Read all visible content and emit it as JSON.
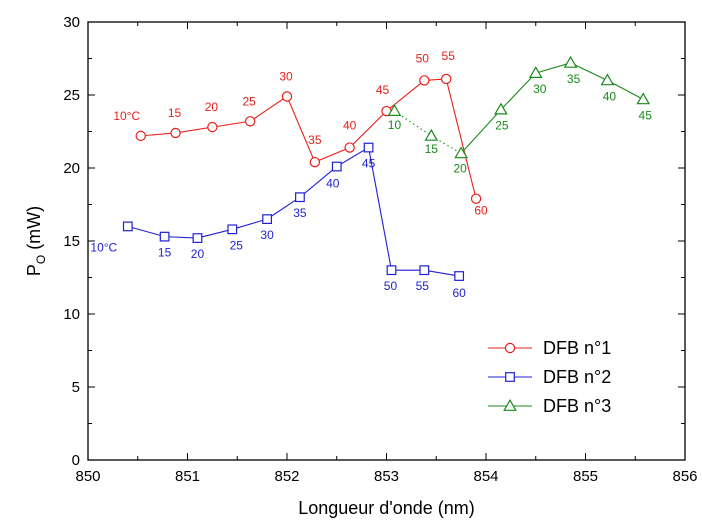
{
  "chart_data": {
    "type": "line",
    "title": "",
    "xlabel": "Longueur d'onde (nm)",
    "ylabel_main": "P",
    "ylabel_sub": "O",
    "ylabel_unit": " (mW)",
    "xlim": [
      850,
      856
    ],
    "ylim": [
      0,
      30
    ],
    "xticks": [
      "850",
      "851",
      "852",
      "853",
      "854",
      "855",
      "856"
    ],
    "yticks": [
      "0",
      "5",
      "10",
      "15",
      "20",
      "25",
      "30"
    ],
    "grid": false,
    "legend_position": "bottom-right",
    "series": [
      {
        "name": "DFB n°1",
        "color": "#e8201c",
        "marker": "circle",
        "line_style": "solid",
        "points": [
          {
            "x": 850.53,
            "y": 22.2,
            "label": "10°C"
          },
          {
            "x": 850.88,
            "y": 22.4,
            "label": "15"
          },
          {
            "x": 851.25,
            "y": 22.8,
            "label": "20"
          },
          {
            "x": 851.63,
            "y": 23.2,
            "label": "25"
          },
          {
            "x": 852.0,
            "y": 24.9,
            "label": "30"
          },
          {
            "x": 852.28,
            "y": 20.4,
            "label": "35"
          },
          {
            "x": 852.63,
            "y": 21.4,
            "label": "40"
          },
          {
            "x": 853.0,
            "y": 23.9,
            "label": "45"
          },
          {
            "x": 853.38,
            "y": 26.0,
            "label": "50"
          },
          {
            "x": 853.6,
            "y": 26.1,
            "label": "55"
          },
          {
            "x": 853.9,
            "y": 17.9,
            "label": "60"
          }
        ]
      },
      {
        "name": "DFB n°2",
        "color": "#1f1fd6",
        "marker": "square",
        "line_style": "solid",
        "points": [
          {
            "x": 850.4,
            "y": 16.0,
            "label": "10°C"
          },
          {
            "x": 850.77,
            "y": 15.3,
            "label": "15"
          },
          {
            "x": 851.1,
            "y": 15.2,
            "label": "20"
          },
          {
            "x": 851.45,
            "y": 15.8,
            "label": "25"
          },
          {
            "x": 851.8,
            "y": 16.5,
            "label": "30"
          },
          {
            "x": 852.13,
            "y": 18.0,
            "label": "35"
          },
          {
            "x": 852.5,
            "y": 20.1,
            "label": "40"
          },
          {
            "x": 852.82,
            "y": 21.4,
            "label": "45"
          },
          {
            "x": 853.05,
            "y": 13.0,
            "label": "50"
          },
          {
            "x": 853.38,
            "y": 13.0,
            "label": "55"
          },
          {
            "x": 853.73,
            "y": 12.6,
            "label": "60"
          }
        ]
      },
      {
        "name": "DFB n°3",
        "color": "#1a8a1a",
        "marker": "triangle",
        "line_style": "dotted-then-solid",
        "points": [
          {
            "x": 853.08,
            "y": 23.9,
            "label": "10"
          },
          {
            "x": 853.45,
            "y": 22.2,
            "label": "15"
          },
          {
            "x": 853.75,
            "y": 21.0,
            "label": "20"
          },
          {
            "x": 854.15,
            "y": 24.0,
            "label": "25"
          },
          {
            "x": 854.5,
            "y": 26.5,
            "label": "30"
          },
          {
            "x": 854.85,
            "y": 27.2,
            "label": "35"
          },
          {
            "x": 855.22,
            "y": 26.0,
            "label": "40"
          },
          {
            "x": 855.58,
            "y": 24.7,
            "label": "45"
          }
        ]
      }
    ]
  }
}
